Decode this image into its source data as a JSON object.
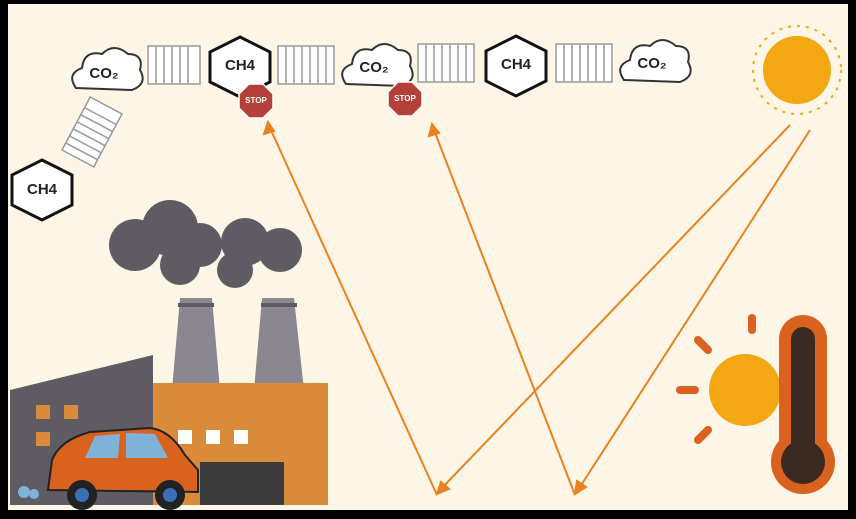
{
  "molecules": [
    {
      "label": "CO₂"
    },
    {
      "label": "CH4"
    },
    {
      "label": "CO₂"
    },
    {
      "label": "CH4"
    },
    {
      "label": "CO₂"
    },
    {
      "label": "CH4"
    }
  ],
  "stop_signs": [
    {
      "label": "STOP"
    },
    {
      "label": "STOP"
    }
  ]
}
